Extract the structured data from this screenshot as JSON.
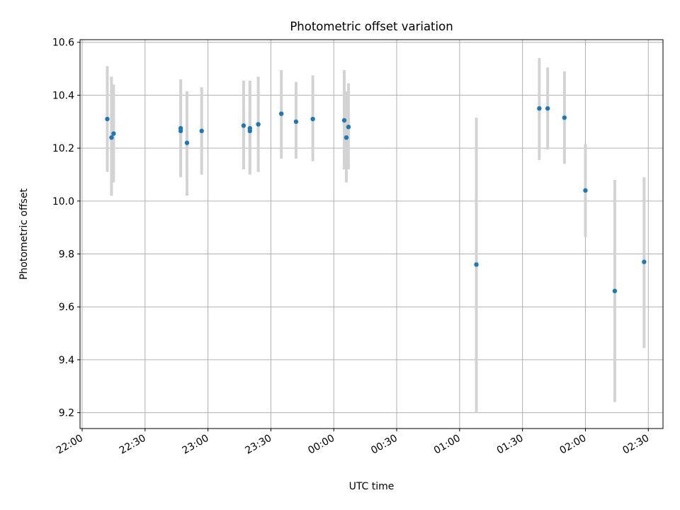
{
  "chart_data": {
    "type": "scatter",
    "title": "Photometric offset variation",
    "xlabel": "UTC time",
    "ylabel": "Photometric offset",
    "xlim": [
      "21:59",
      "02:37"
    ],
    "ylim": [
      9.14,
      10.61
    ],
    "x_ticks": [
      "22:00",
      "22:30",
      "23:00",
      "23:30",
      "00:00",
      "00:30",
      "01:00",
      "01:30",
      "02:00",
      "02:30"
    ],
    "y_ticks": [
      "9.2",
      "9.4",
      "9.6",
      "9.8",
      "10.0",
      "10.2",
      "10.4",
      "10.6"
    ],
    "grid": true,
    "marker_color": "#1f77b4",
    "errorbar_color": "#d3d3d3",
    "series": [
      {
        "points": [
          {
            "x": "22:12",
            "y": 10.31,
            "ylow": 10.11,
            "yhigh": 10.51
          },
          {
            "x": "22:14",
            "y": 10.24,
            "ylow": 10.02,
            "yhigh": 10.47
          },
          {
            "x": "22:15",
            "y": 10.255,
            "ylow": 10.07,
            "yhigh": 10.44
          },
          {
            "x": "22:47",
            "y": 10.265,
            "ylow": 10.09,
            "yhigh": 10.43
          },
          {
            "x": "22:47",
            "y": 10.275,
            "ylow": 10.1,
            "yhigh": 10.46
          },
          {
            "x": "22:50",
            "y": 10.22,
            "ylow": 10.02,
            "yhigh": 10.415
          },
          {
            "x": "22:57",
            "y": 10.265,
            "ylow": 10.1,
            "yhigh": 10.43
          },
          {
            "x": "23:17",
            "y": 10.285,
            "ylow": 10.12,
            "yhigh": 10.455
          },
          {
            "x": "23:20",
            "y": 10.265,
            "ylow": 10.1,
            "yhigh": 10.45
          },
          {
            "x": "23:20",
            "y": 10.275,
            "ylow": 10.11,
            "yhigh": 10.455
          },
          {
            "x": "23:24",
            "y": 10.29,
            "ylow": 10.11,
            "yhigh": 10.47
          },
          {
            "x": "23:35",
            "y": 10.33,
            "ylow": 10.16,
            "yhigh": 10.495
          },
          {
            "x": "23:42",
            "y": 10.3,
            "ylow": 10.16,
            "yhigh": 10.45
          },
          {
            "x": "23:50",
            "y": 10.31,
            "ylow": 10.15,
            "yhigh": 10.475
          },
          {
            "x": "00:05",
            "y": 10.305,
            "ylow": 10.12,
            "yhigh": 10.495
          },
          {
            "x": "00:06",
            "y": 10.24,
            "ylow": 10.07,
            "yhigh": 10.415
          },
          {
            "x": "00:07",
            "y": 10.28,
            "ylow": 10.12,
            "yhigh": 10.445
          },
          {
            "x": "01:08",
            "y": 9.76,
            "ylow": 9.2,
            "yhigh": 10.315
          },
          {
            "x": "01:38",
            "y": 10.35,
            "ylow": 10.155,
            "yhigh": 10.54
          },
          {
            "x": "01:42",
            "y": 10.35,
            "ylow": 10.195,
            "yhigh": 10.505
          },
          {
            "x": "01:50",
            "y": 10.315,
            "ylow": 10.14,
            "yhigh": 10.49
          },
          {
            "x": "02:00",
            "y": 10.04,
            "ylow": 9.865,
            "yhigh": 10.215
          },
          {
            "x": "02:14",
            "y": 9.66,
            "ylow": 9.24,
            "yhigh": 10.08
          },
          {
            "x": "02:28",
            "y": 9.77,
            "ylow": 9.445,
            "yhigh": 10.09
          }
        ]
      }
    ]
  }
}
